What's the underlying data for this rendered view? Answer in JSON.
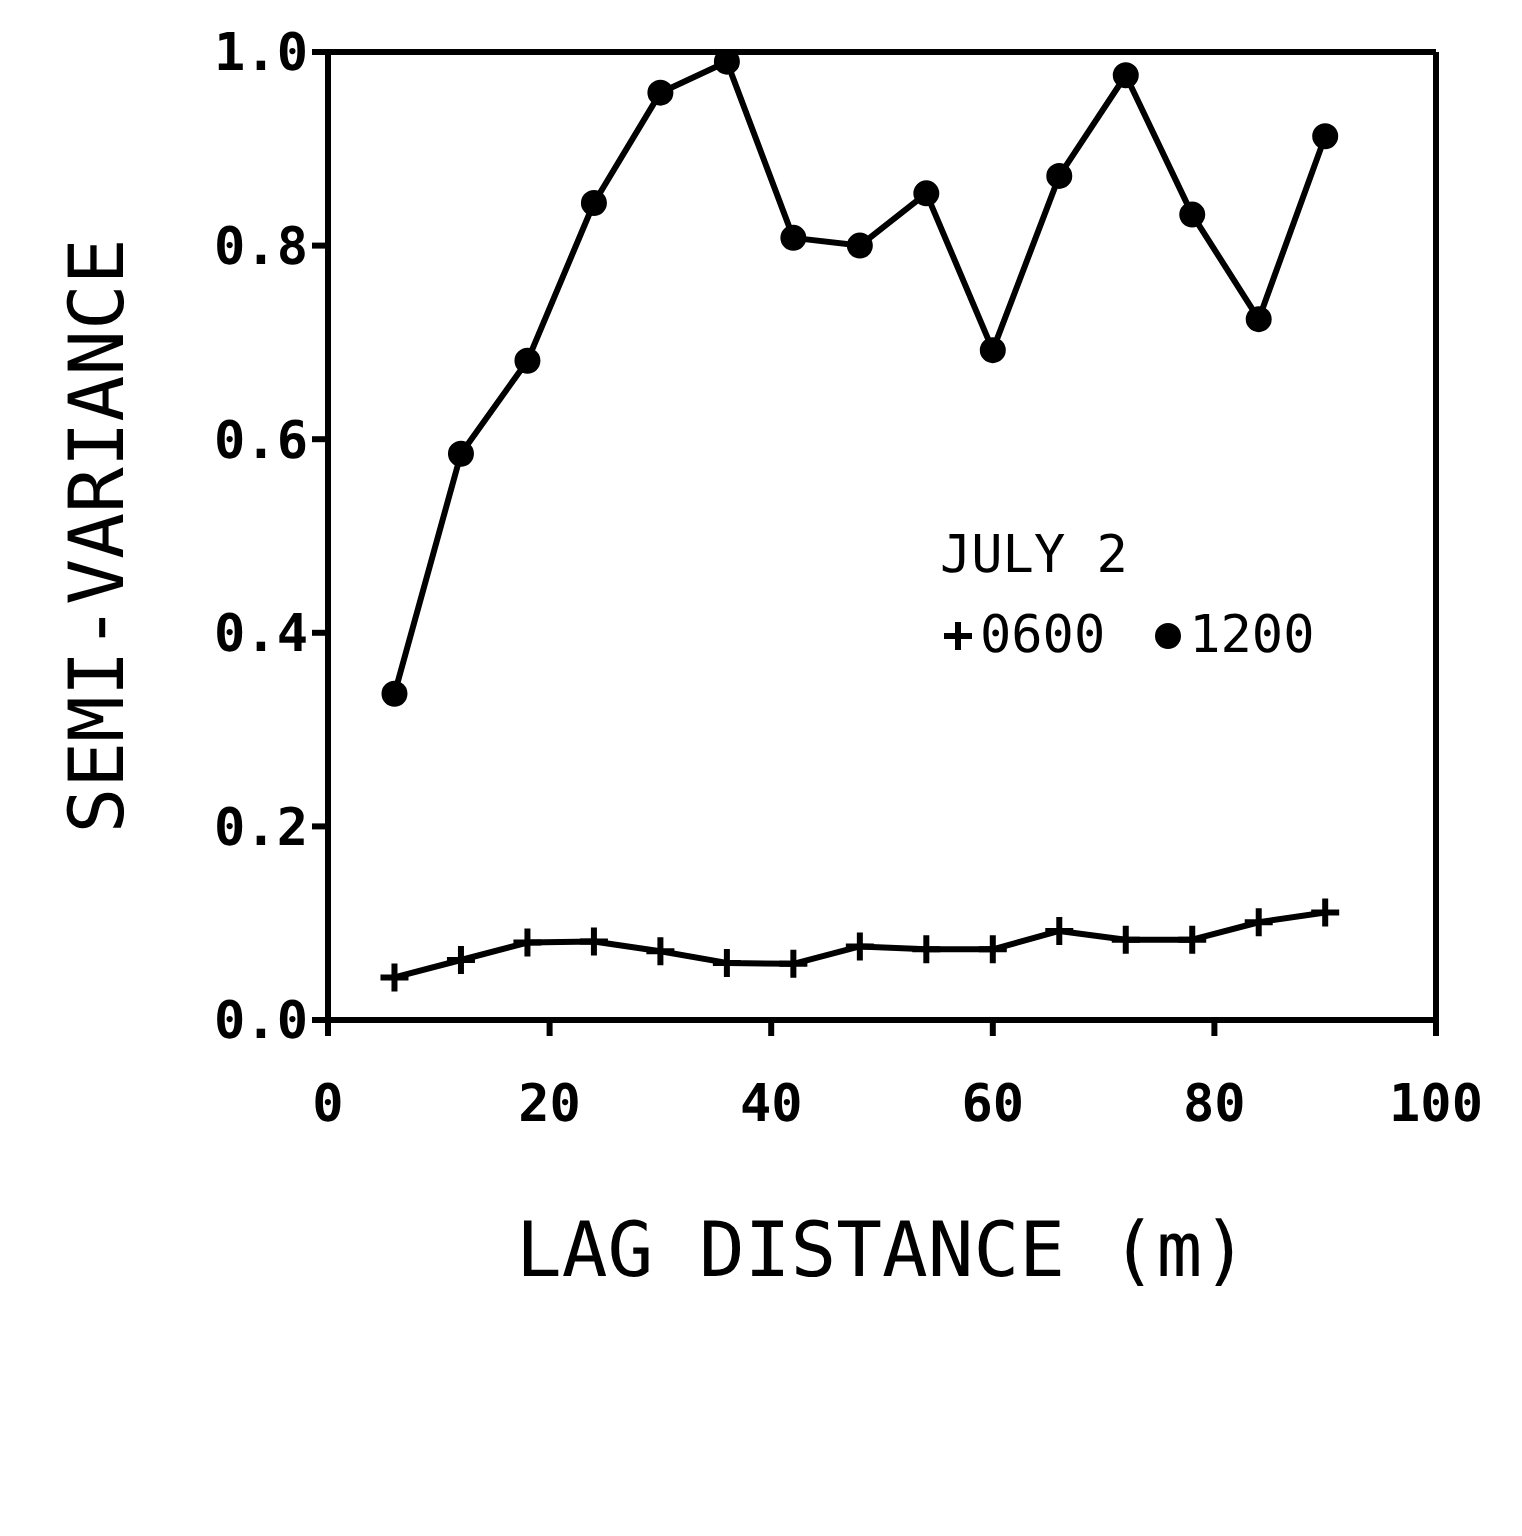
{
  "chart_data": {
    "type": "line",
    "xlabel": "LAG DISTANCE (m)",
    "ylabel": "SEMI-VARIANCE",
    "legend_title": "JULY 2",
    "legend": "right",
    "grid": false,
    "x": [
      6,
      12,
      18,
      24,
      30,
      36,
      42,
      48,
      54,
      60,
      66,
      72,
      78,
      84,
      90
    ],
    "series": [
      {
        "name": "0600",
        "color": "#000000",
        "marker": "cross",
        "values": [
          0.044,
          0.062,
          0.08,
          0.081,
          0.071,
          0.059,
          0.058,
          0.076,
          0.073,
          0.073,
          0.092,
          0.083,
          0.083,
          0.101,
          0.111
        ]
      },
      {
        "name": "1200",
        "color": "#000000",
        "marker": "circle",
        "values": [
          0.337,
          0.585,
          0.681,
          0.844,
          0.958,
          0.99,
          0.808,
          0.8,
          0.854,
          0.692,
          0.872,
          0.976,
          0.832,
          0.724,
          0.913
        ]
      }
    ],
    "xlim": [
      0,
      100
    ],
    "xticks": [
      0,
      20,
      40,
      60,
      80,
      100
    ],
    "ylim": [
      0,
      1
    ],
    "yticks": [
      {
        "value": 0,
        "label": "0.0"
      },
      {
        "value": 0.2,
        "label": "0.2"
      },
      {
        "value": 0.4,
        "label": "0.4"
      },
      {
        "value": 0.6,
        "label": "0.6"
      },
      {
        "value": 0.8,
        "label": "0.8"
      },
      {
        "value": 1,
        "label": "1.0"
      }
    ],
    "line_style": "solid"
  }
}
